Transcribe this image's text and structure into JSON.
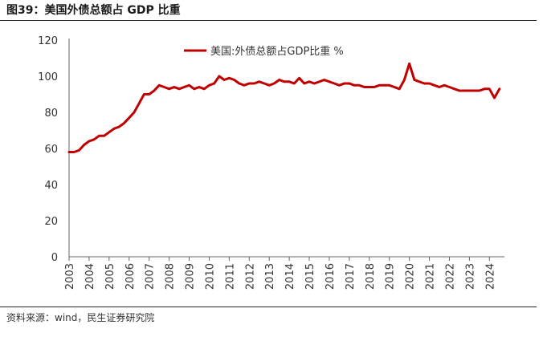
{
  "figure": {
    "title": "图39：美国外债总额占 GDP 比重",
    "source": "资料来源：wind，民生证券研究院"
  },
  "colors": {
    "series": "#c00000",
    "axis": "#666666",
    "text": "#333333"
  },
  "chart_data": {
    "type": "line",
    "title": "",
    "xlabel": "",
    "ylabel": "",
    "ylim": [
      0,
      120
    ],
    "yticks": [
      0,
      20,
      40,
      60,
      80,
      100,
      120
    ],
    "xlim": [
      2003,
      2024.75
    ],
    "xticks": [
      "2003",
      "2004",
      "2005",
      "2006",
      "2007",
      "2008",
      "2009",
      "2010",
      "2011",
      "2012",
      "2013",
      "2014",
      "2015",
      "2016",
      "2017",
      "2018",
      "2019",
      "2020",
      "2021",
      "2022",
      "2023",
      "2024"
    ],
    "grid": false,
    "legend_position": "top-center",
    "series": [
      {
        "name": "美国:外债总额占GDP比重 %",
        "x": [
          2003,
          2003.25,
          2003.5,
          2003.75,
          2004,
          2004.25,
          2004.5,
          2004.75,
          2005,
          2005.25,
          2005.5,
          2005.75,
          2006,
          2006.25,
          2006.5,
          2006.75,
          2007,
          2007.25,
          2007.5,
          2007.75,
          2008,
          2008.25,
          2008.5,
          2008.75,
          2009,
          2009.25,
          2009.5,
          2009.75,
          2010,
          2010.25,
          2010.5,
          2010.75,
          2011,
          2011.25,
          2011.5,
          2011.75,
          2012,
          2012.25,
          2012.5,
          2012.75,
          2013,
          2013.25,
          2013.5,
          2013.75,
          2014,
          2014.25,
          2014.5,
          2014.75,
          2015,
          2015.25,
          2015.5,
          2015.75,
          2016,
          2016.25,
          2016.5,
          2016.75,
          2017,
          2017.25,
          2017.5,
          2017.75,
          2018,
          2018.25,
          2018.5,
          2018.75,
          2019,
          2019.25,
          2019.5,
          2019.75,
          2020,
          2020.25,
          2020.5,
          2020.75,
          2021,
          2021.25,
          2021.5,
          2021.75,
          2022,
          2022.25,
          2022.5,
          2022.75,
          2023,
          2023.25,
          2023.5,
          2023.75,
          2024,
          2024.25,
          2024.5
        ],
        "values": [
          58,
          58,
          59,
          62,
          64,
          65,
          67,
          67,
          69,
          71,
          72,
          74,
          77,
          80,
          85,
          90,
          90,
          92,
          95,
          94,
          93,
          94,
          93,
          94,
          95,
          93,
          94,
          93,
          95,
          96,
          100,
          98,
          99,
          98,
          96,
          95,
          96,
          96,
          97,
          96,
          95,
          96,
          98,
          97,
          97,
          96,
          99,
          96,
          97,
          96,
          97,
          98,
          97,
          96,
          95,
          96,
          96,
          95,
          95,
          94,
          94,
          94,
          95,
          95,
          95,
          94,
          93,
          98,
          107,
          98,
          97,
          96,
          96,
          95,
          94,
          95,
          94,
          93,
          92,
          92,
          92,
          92,
          92,
          93,
          93,
          88,
          93
        ]
      }
    ]
  }
}
